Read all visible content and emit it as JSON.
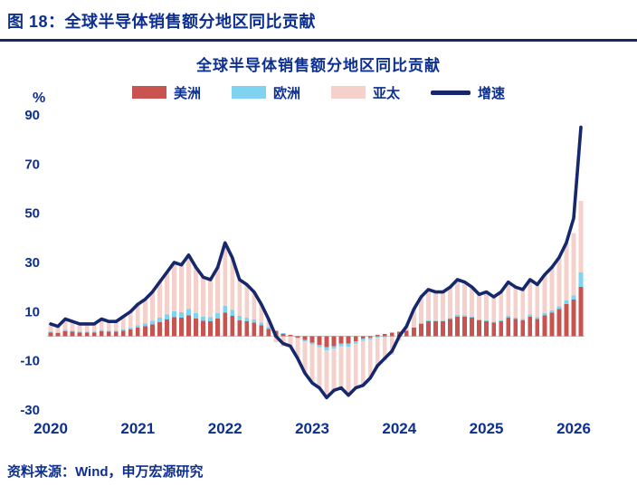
{
  "header": {
    "title": "图 18：全球半导体销售额分地区同比贡献"
  },
  "footer": {
    "source": "资料来源：Wind，申万宏源研究"
  },
  "chart": {
    "title": "全球半导体销售额分地区同比贡献",
    "y_unit": "%"
  },
  "colors": {
    "text_navy": "#0D2F8F",
    "rule_navy": "#15286B",
    "zero_line": "#C2C9DC",
    "americas_red": "#C9544F",
    "europe_blue": "#7FD2F0",
    "apac_pink": "#F6D0CB",
    "line_navy": "#14286B"
  },
  "chart_data": {
    "type": "bar",
    "subtype": "stacked-bar-with-line",
    "title": "全球半导体销售额分地区同比贡献",
    "ylabel": "%",
    "ylim": [
      -30,
      90
    ],
    "yticks": [
      90,
      70,
      50,
      30,
      10,
      -10,
      -30
    ],
    "xticks": [
      "2020",
      "2021",
      "2022",
      "2023",
      "2024",
      "2025",
      "2026"
    ],
    "legend_position": "top",
    "grid": false,
    "x": [
      "2020-01",
      "2020-02",
      "2020-03",
      "2020-04",
      "2020-05",
      "2020-06",
      "2020-07",
      "2020-08",
      "2020-09",
      "2020-10",
      "2020-11",
      "2020-12",
      "2021-01",
      "2021-02",
      "2021-03",
      "2021-04",
      "2021-05",
      "2021-06",
      "2021-07",
      "2021-08",
      "2021-09",
      "2021-10",
      "2021-11",
      "2021-12",
      "2022-01",
      "2022-02",
      "2022-03",
      "2022-04",
      "2022-05",
      "2022-06",
      "2022-07",
      "2022-08",
      "2022-09",
      "2022-10",
      "2022-11",
      "2022-12",
      "2023-01",
      "2023-02",
      "2023-03",
      "2023-04",
      "2023-05",
      "2023-06",
      "2023-07",
      "2023-08",
      "2023-09",
      "2023-10",
      "2023-11",
      "2023-12",
      "2024-01",
      "2024-02",
      "2024-03",
      "2024-04",
      "2024-05",
      "2024-06",
      "2024-07",
      "2024-08",
      "2024-09",
      "2024-10",
      "2024-11",
      "2024-12",
      "2025-01",
      "2025-02",
      "2025-03",
      "2025-04",
      "2025-05",
      "2025-06",
      "2025-07",
      "2025-08",
      "2025-09",
      "2025-10",
      "2025-11",
      "2025-12",
      "2026-01",
      "2026-02"
    ],
    "series": [
      {
        "name": "美洲",
        "type": "bar",
        "color": "#C9544F",
        "values": [
          1.5,
          1.2,
          2.0,
          1.8,
          1.5,
          1.5,
          1.5,
          2.0,
          1.8,
          1.8,
          2.3,
          2.8,
          3.5,
          4.0,
          4.8,
          5.8,
          6.8,
          7.8,
          7.5,
          8.5,
          7.2,
          6.2,
          6.0,
          7.2,
          9.5,
          8.2,
          6.5,
          6.0,
          5.5,
          4.5,
          3.0,
          2.0,
          1.0,
          0.5,
          -0.5,
          -1.5,
          -2.5,
          -3.5,
          -4.5,
          -4.0,
          -3.0,
          -3.0,
          -2.0,
          -1.0,
          -0.5,
          0.5,
          1.0,
          1.5,
          1.8,
          2.2,
          3.5,
          5.0,
          6.0,
          6.0,
          6.0,
          7.0,
          8.0,
          8.0,
          7.5,
          6.5,
          6.0,
          5.5,
          6.0,
          7.5,
          7.0,
          6.5,
          8.0,
          7.0,
          8.5,
          9.5,
          11.0,
          13.0,
          15.0,
          20.0
        ]
      },
      {
        "name": "欧洲",
        "type": "bar",
        "color": "#7FD2F0",
        "values": [
          0.3,
          0.3,
          0.5,
          0.4,
          0.3,
          0.3,
          0.3,
          0.5,
          0.4,
          0.4,
          0.5,
          0.7,
          1.0,
          1.2,
          1.4,
          1.7,
          2.0,
          2.3,
          2.2,
          2.5,
          2.1,
          1.8,
          1.7,
          2.1,
          2.8,
          2.4,
          1.8,
          1.6,
          1.4,
          1.0,
          0.7,
          0.4,
          0.2,
          0.0,
          -0.3,
          -0.6,
          -0.9,
          -1.0,
          -1.2,
          -1.0,
          -1.0,
          -1.2,
          -1.0,
          -0.9,
          -0.7,
          -0.5,
          -0.3,
          -0.2,
          -0.3,
          -0.2,
          0.0,
          0.3,
          0.4,
          0.3,
          0.3,
          0.4,
          0.6,
          0.5,
          0.4,
          0.4,
          0.4,
          0.4,
          0.5,
          0.7,
          0.5,
          0.5,
          0.8,
          0.7,
          0.8,
          1.0,
          1.2,
          1.5,
          1.5,
          6.0
        ]
      },
      {
        "name": "亚太",
        "type": "bar",
        "color": "#F6D0CB",
        "values": [
          3.2,
          2.5,
          4.5,
          3.8,
          3.2,
          3.2,
          3.2,
          4.5,
          3.8,
          3.8,
          5.2,
          6.5,
          8.5,
          9.8,
          11.8,
          14.5,
          17.2,
          19.9,
          19.3,
          22.0,
          18.7,
          16.0,
          15.3,
          18.7,
          25.7,
          21.4,
          14.7,
          13.4,
          11.1,
          7.5,
          3.3,
          -2.4,
          -4.2,
          -4.5,
          -8.2,
          -12.9,
          -15.6,
          -16.5,
          -19.3,
          -17.0,
          -17.0,
          -19.8,
          -18.0,
          -18.1,
          -15.8,
          -12.0,
          -9.7,
          -7.3,
          -1.5,
          2.0,
          7.5,
          10.7,
          12.6,
          11.7,
          11.7,
          12.6,
          14.4,
          13.5,
          12.1,
          10.1,
          11.6,
          10.1,
          11.5,
          13.8,
          12.5,
          12.0,
          14.2,
          13.3,
          15.7,
          17.5,
          19.8,
          23.5,
          25.5,
          29.0
        ]
      },
      {
        "name": "增速",
        "type": "line",
        "color": "#14286B",
        "values": [
          5,
          4,
          7,
          6,
          5,
          5,
          5,
          7,
          6,
          6,
          8,
          10,
          13,
          15,
          18,
          22,
          26,
          30,
          29,
          33,
          28,
          24,
          23,
          28,
          38,
          32,
          23,
          21,
          18,
          13,
          7,
          0,
          -3,
          -4,
          -9,
          -15,
          -19,
          -21,
          -25,
          -22,
          -21,
          -24,
          -21,
          -20,
          -17,
          -12,
          -9,
          -6,
          0,
          4,
          11,
          16,
          19,
          18,
          18,
          20,
          23,
          22,
          20,
          17,
          18,
          16,
          18,
          22,
          20,
          19,
          23,
          21,
          25,
          28,
          32,
          38,
          48,
          85
        ]
      }
    ]
  }
}
